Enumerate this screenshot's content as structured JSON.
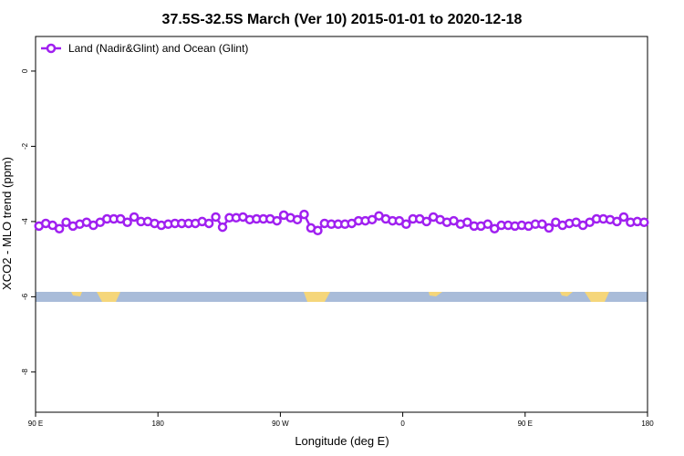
{
  "chart_data": {
    "type": "line",
    "title": "37.5S-32.5S March (Ver 10)   2015-01-01 to 2020-12-18",
    "x_label": "Longitude (deg E)",
    "y_label": "XCO2 - MLO trend (ppm)",
    "xlim": [
      90,
      540
    ],
    "ylim": [
      -9.07,
      0.92
    ],
    "xticks": [
      {
        "value": 90,
        "label": "90 E"
      },
      180,
      {
        "value": 270,
        "label": "90 W"
      },
      {
        "value": 360,
        "label": "0"
      },
      {
        "value": 450,
        "label": "90 E"
      },
      {
        "value": 540,
        "label": "180"
      }
    ],
    "yticks": [
      0,
      -2,
      -4,
      -6,
      -8
    ],
    "legend": "top-left",
    "x": [
      92.5,
      97.5,
      102.5,
      107.5,
      112.5,
      117.5,
      122.5,
      127.5,
      132.5,
      137.5,
      142.5,
      147.5,
      152.5,
      157.5,
      162.5,
      167.5,
      172.5,
      177.5,
      182.5,
      187.5,
      192.5,
      197.5,
      202.5,
      207.5,
      212.5,
      217.5,
      222.5,
      227.5,
      232.5,
      237.5,
      242.5,
      247.5,
      252.5,
      257.5,
      262.5,
      267.5,
      272.5,
      277.5,
      282.5,
      287.5,
      292.5,
      297.5,
      302.5,
      307.5,
      312.5,
      317.5,
      322.5,
      327.5,
      332.5,
      337.5,
      342.5,
      347.5,
      352.5,
      357.5,
      362.5,
      367.5,
      372.5,
      377.5,
      382.5,
      387.5,
      392.5,
      397.5,
      402.5,
      407.5,
      412.5,
      417.5,
      422.5,
      427.5,
      432.5,
      437.5,
      442.5,
      447.5,
      452.5,
      457.5,
      462.5,
      467.5,
      472.5,
      477.5,
      482.5,
      487.5,
      492.5,
      497.5,
      502.5,
      507.5,
      512.5,
      517.5,
      522.5,
      527.5,
      532.5,
      537.5
    ],
    "series": [
      {
        "name": "Land (Nadir&Glint) and Ocean (Glint)",
        "color": "#a020f0",
        "values": [
          -4.12,
          -4.05,
          -4.1,
          -4.19,
          -4.02,
          -4.12,
          -4.07,
          -4.02,
          -4.1,
          -4.02,
          -3.93,
          -3.93,
          -3.93,
          -4.02,
          -3.88,
          -4.0,
          -4.0,
          -4.05,
          -4.1,
          -4.07,
          -4.05,
          -4.05,
          -4.05,
          -4.05,
          -4.0,
          -4.05,
          -3.88,
          -4.15,
          -3.9,
          -3.9,
          -3.88,
          -3.95,
          -3.93,
          -3.93,
          -3.93,
          -3.98,
          -3.83,
          -3.9,
          -3.95,
          -3.81,
          -4.17,
          -4.24,
          -4.05,
          -4.07,
          -4.07,
          -4.07,
          -4.05,
          -3.98,
          -3.98,
          -3.95,
          -3.85,
          -3.93,
          -3.98,
          -3.98,
          -4.07,
          -3.93,
          -3.93,
          -4.0,
          -3.88,
          -3.95,
          -4.02,
          -3.98,
          -4.07,
          -4.02,
          -4.12,
          -4.12,
          -4.07,
          -4.19,
          -4.1,
          -4.1,
          -4.12,
          -4.1,
          -4.12,
          -4.07,
          -4.07,
          -4.17,
          -4.02,
          -4.1,
          -4.05,
          -4.02,
          -4.1,
          -4.02,
          -3.93,
          -3.93,
          -3.95,
          -4.0,
          -3.88,
          -4.02,
          -4.0,
          -4.02
        ]
      }
    ]
  }
}
